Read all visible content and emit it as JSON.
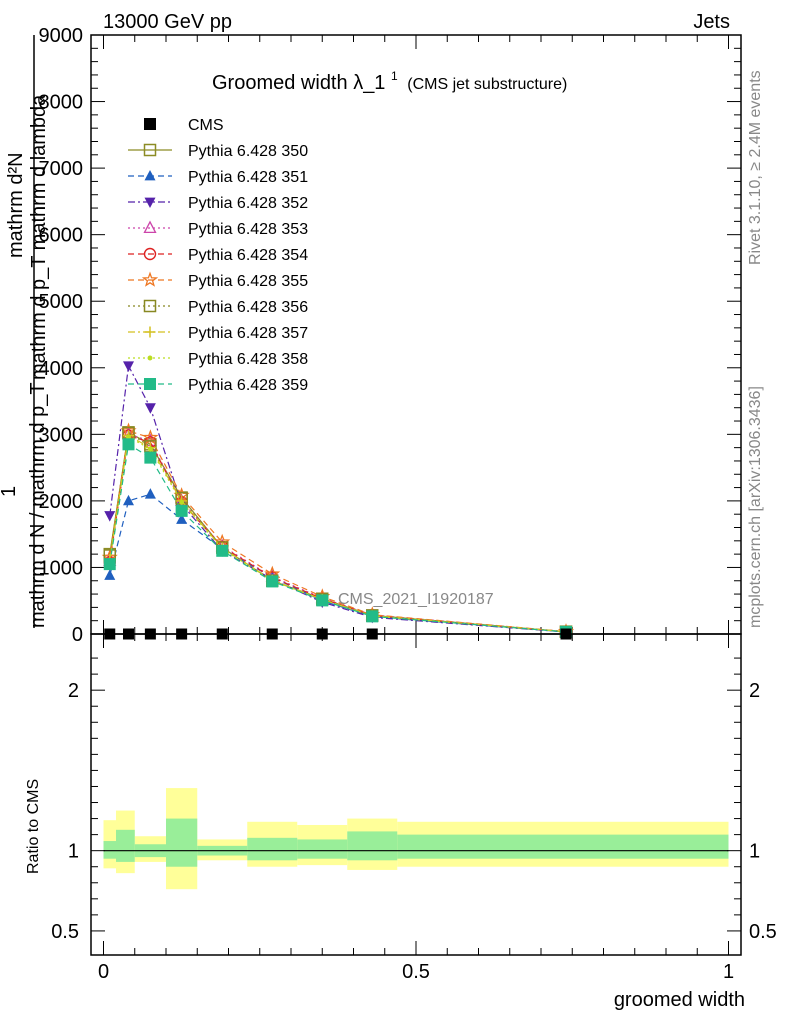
{
  "header": {
    "left": "13000 GeV pp",
    "right": "Jets"
  },
  "side_text": {
    "rivet": "Rivet 3.1.10, ≥ 2.4M events",
    "mcplots": "mcplots.cern.ch [arXiv:1306.3436]"
  },
  "watermark": "CMS_2021_I1920187",
  "chart_data": [
    {
      "type": "line",
      "title_main": "Groomed width",
      "title_symbol": "λ_1",
      "title_sup": "1",
      "title_sub": "(CMS jet substructure)",
      "ylabel_num_top": "mathrm d²N",
      "ylabel_num_bottom": "mathrm d p_T mathrm d lambda",
      "ylabel_den": "mathrm d N / mathrm d p_T",
      "ylabel_one": "1",
      "ylim": [
        0,
        9000
      ],
      "yticks": [
        0,
        1000,
        2000,
        3000,
        4000,
        5000,
        6000,
        7000,
        8000,
        9000
      ],
      "ytick_labels": [
        "0",
        "1000",
        "2000",
        "3000",
        "4000",
        "5000",
        "6000",
        "7000",
        "8000",
        "9000"
      ],
      "xlim": [
        -0.02,
        1.02
      ],
      "x": [
        0.01,
        0.04,
        0.075,
        0.125,
        0.19,
        0.27,
        0.35,
        0.43,
        0.74
      ],
      "series": [
        {
          "name": "CMS",
          "marker": "square-filled",
          "line": "none",
          "color": "#000000",
          "values": [
            0,
            0,
            0,
            0,
            0,
            0,
            0,
            0,
            0
          ]
        },
        {
          "name": "Pythia 6.428 350",
          "marker": "square-open",
          "line": "solid",
          "color": "#8c8c24",
          "values": [
            1200,
            3030,
            2850,
            2050,
            1300,
            800,
            530,
            280,
            35
          ]
        },
        {
          "name": "Pythia 6.428 351",
          "marker": "triangle-up-filled",
          "line": "dashed",
          "color": "#1f5fbf",
          "values": [
            880,
            2000,
            2100,
            1720,
            1280,
            850,
            500,
            260,
            30
          ]
        },
        {
          "name": "Pythia 6.428 352",
          "marker": "triangle-down-filled",
          "line": "dashdot",
          "color": "#5522aa",
          "values": [
            1780,
            4030,
            3400,
            1950,
            1250,
            820,
            480,
            250,
            30
          ]
        },
        {
          "name": "Pythia 6.428 353",
          "marker": "triangle-up-open",
          "line": "dotted",
          "color": "#cc44aa",
          "values": [
            1100,
            3000,
            2900,
            2000,
            1320,
            860,
            540,
            285,
            35
          ]
        },
        {
          "name": "Pythia 6.428 354",
          "marker": "circle-open",
          "line": "dashed",
          "color": "#dd2222",
          "values": [
            1080,
            2980,
            2880,
            1980,
            1310,
            850,
            530,
            280,
            35
          ]
        },
        {
          "name": "Pythia 6.428 355",
          "marker": "star-open",
          "line": "dashed",
          "color": "#ee7722",
          "values": [
            1150,
            3050,
            2950,
            2080,
            1380,
            900,
            560,
            290,
            36
          ]
        },
        {
          "name": "Pythia 6.428 356",
          "marker": "square-open",
          "line": "dotted",
          "color": "#888822",
          "values": [
            1180,
            3020,
            2820,
            2040,
            1300,
            800,
            520,
            275,
            34
          ]
        },
        {
          "name": "Pythia 6.428 357",
          "marker": "plus",
          "line": "dashdot",
          "color": "#d4c020",
          "values": [
            1120,
            2980,
            2800,
            2000,
            1290,
            810,
            520,
            275,
            34
          ]
        },
        {
          "name": "Pythia 6.428 358",
          "marker": "dot",
          "line": "dotted",
          "color": "#bbdd22",
          "values": [
            1100,
            2960,
            2780,
            1980,
            1280,
            800,
            515,
            270,
            33
          ]
        },
        {
          "name": "Pythia 6.428 359",
          "marker": "square-filled",
          "line": "dashed",
          "color": "#22bb88",
          "values": [
            1050,
            2850,
            2650,
            1850,
            1250,
            790,
            505,
            265,
            32
          ]
        }
      ]
    },
    {
      "type": "band",
      "ylabel": "Ratio to CMS",
      "xlabel": "groomed width",
      "ylim": [
        0.35,
        2.35
      ],
      "yticks": [
        0.5,
        1,
        2
      ],
      "ytick_labels": [
        "0.5",
        "1",
        "2"
      ],
      "xticks": [
        0,
        0.5,
        1
      ],
      "xtick_labels": [
        "0",
        "0.5",
        "1"
      ],
      "xlim": [
        -0.02,
        1.02
      ],
      "bins": [
        {
          "lo": 0.0,
          "hi": 0.02,
          "stat_lo": 0.95,
          "stat_hi": 1.06,
          "tot_lo": 0.89,
          "tot_hi": 1.19
        },
        {
          "lo": 0.02,
          "hi": 0.05,
          "stat_lo": 0.93,
          "stat_hi": 1.13,
          "tot_lo": 0.86,
          "tot_hi": 1.25
        },
        {
          "lo": 0.05,
          "hi": 0.1,
          "stat_lo": 0.96,
          "stat_hi": 1.04,
          "tot_lo": 0.93,
          "tot_hi": 1.09
        },
        {
          "lo": 0.1,
          "hi": 0.15,
          "stat_lo": 0.9,
          "stat_hi": 1.2,
          "tot_lo": 0.76,
          "tot_hi": 1.39
        },
        {
          "lo": 0.15,
          "hi": 0.23,
          "stat_lo": 0.97,
          "stat_hi": 1.03,
          "tot_lo": 0.94,
          "tot_hi": 1.07
        },
        {
          "lo": 0.23,
          "hi": 0.31,
          "stat_lo": 0.94,
          "stat_hi": 1.08,
          "tot_lo": 0.9,
          "tot_hi": 1.18
        },
        {
          "lo": 0.31,
          "hi": 0.39,
          "stat_lo": 0.95,
          "stat_hi": 1.07,
          "tot_lo": 0.91,
          "tot_hi": 1.16
        },
        {
          "lo": 0.39,
          "hi": 0.47,
          "stat_lo": 0.94,
          "stat_hi": 1.12,
          "tot_lo": 0.88,
          "tot_hi": 1.2
        },
        {
          "lo": 0.47,
          "hi": 1.0,
          "stat_lo": 0.95,
          "stat_hi": 1.1,
          "tot_lo": 0.9,
          "tot_hi": 1.18
        }
      ],
      "colors": {
        "stat": "#99ee99",
        "total": "#ffff99",
        "reference": "#000000"
      }
    }
  ]
}
